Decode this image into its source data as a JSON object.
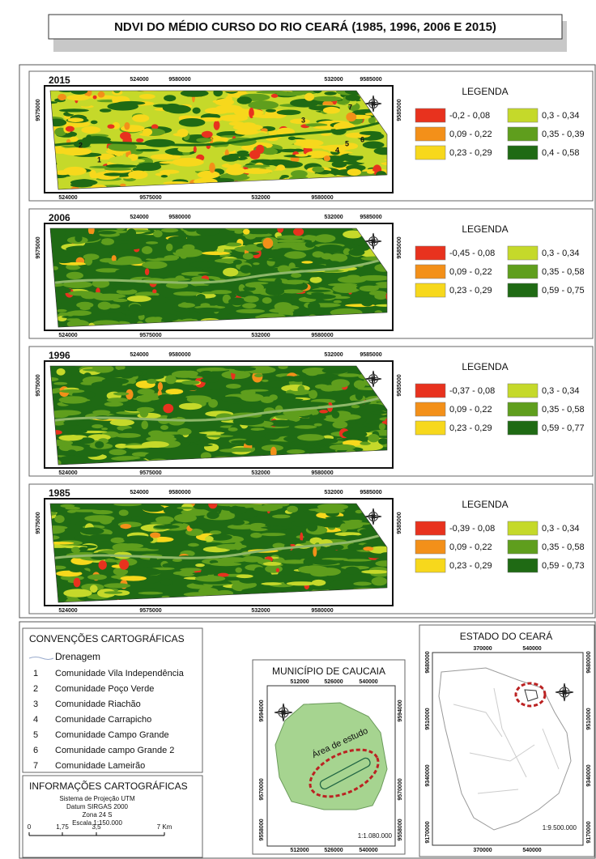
{
  "title": "NDVI DO MÉDIO CURSO DO RIO CEARÁ (1985, 1996, 2006 E 2015)",
  "panels": [
    {
      "year": "2015",
      "legend_title": "LEGENDA",
      "classes": [
        {
          "label": "-0,2 - 0,08",
          "color": "#e8321e"
        },
        {
          "label": "0,09 - 0,22",
          "color": "#f39019"
        },
        {
          "label": "0,23 - 0,29",
          "color": "#f7d81c"
        },
        {
          "label": "0,3 - 0,34",
          "color": "#c5d92a"
        },
        {
          "label": "0,35 - 0,39",
          "color": "#5f9e1d"
        },
        {
          "label": "0,4 - 0,58",
          "color": "#1f6a14"
        }
      ],
      "top_labels": [
        "524000",
        "9580000",
        "532000",
        "9585000"
      ],
      "bottom_labels": [
        "524000",
        "9575000",
        "532000",
        "9580000"
      ],
      "left_label": "9575000",
      "right_label": "9585000",
      "map_numbers": [
        "1",
        "2",
        "3",
        "4",
        "5",
        "6",
        "7"
      ]
    },
    {
      "year": "2006",
      "legend_title": "LEGENDA",
      "classes": [
        {
          "label": "-0,45 - 0,08",
          "color": "#e8321e"
        },
        {
          "label": "0,09 - 0,22",
          "color": "#f39019"
        },
        {
          "label": "0,23 - 0,29",
          "color": "#f7d81c"
        },
        {
          "label": "0,3 - 0,34",
          "color": "#c5d92a"
        },
        {
          "label": "0,35 - 0,58",
          "color": "#5f9e1d"
        },
        {
          "label": "0,59 - 0,75",
          "color": "#1f6a14"
        }
      ],
      "top_labels": [
        "524000",
        "9580000",
        "532000",
        "9585000"
      ],
      "bottom_labels": [
        "524000",
        "9575000",
        "532000",
        "9580000"
      ],
      "left_label": "9575000",
      "right_label": "9585000"
    },
    {
      "year": "1996",
      "legend_title": "LEGENDA",
      "classes": [
        {
          "label": "-0,37 - 0,08",
          "color": "#e8321e"
        },
        {
          "label": "0,09 - 0,22",
          "color": "#f39019"
        },
        {
          "label": "0,23 - 0,29",
          "color": "#f7d81c"
        },
        {
          "label": "0,3 - 0,34",
          "color": "#c5d92a"
        },
        {
          "label": "0,35 - 0,58",
          "color": "#5f9e1d"
        },
        {
          "label": "0,59 - 0,77",
          "color": "#1f6a14"
        }
      ],
      "top_labels": [
        "524000",
        "9580000",
        "532000",
        "9585000"
      ],
      "bottom_labels": [
        "524000",
        "9575000",
        "532000",
        "9580000"
      ],
      "left_label": "9575000",
      "right_label": "9585000"
    },
    {
      "year": "1985",
      "legend_title": "LEGENDA",
      "classes": [
        {
          "label": "-0,39 - 0,08",
          "color": "#e8321e"
        },
        {
          "label": "0,09 - 0,22",
          "color": "#f39019"
        },
        {
          "label": "0,23 - 0,29",
          "color": "#f7d81c"
        },
        {
          "label": "0,3 - 0,34",
          "color": "#c5d92a"
        },
        {
          "label": "0,35 - 0,58",
          "color": "#5f9e1d"
        },
        {
          "label": "0,59 - 0,73",
          "color": "#1f6a14"
        }
      ],
      "top_labels": [
        "524000",
        "9580000",
        "532000",
        "9585000"
      ],
      "bottom_labels": [
        "524000",
        "9575000",
        "532000",
        "9580000"
      ],
      "left_label": "9575000",
      "right_label": "9585000"
    }
  ],
  "conventions": {
    "title": "CONVENÇÕES CARTOGRÁFICAS",
    "drainage": "Drenagem",
    "items": [
      {
        "number": "1",
        "name": "Comunidade Vila Independência"
      },
      {
        "number": "2",
        "name": "Comunidade Poço Verde"
      },
      {
        "number": "3",
        "name": "Comunidade Riachão"
      },
      {
        "number": "4",
        "name": "Comunidade Carrapicho"
      },
      {
        "number": "5",
        "name": "Comunidade Campo Grande"
      },
      {
        "number": "6",
        "name": "Comunidade campo Grande 2"
      },
      {
        "number": "7",
        "name": "Comunidade Lameirão"
      }
    ]
  },
  "info": {
    "title": "INFORMAÇÕES CARTOGRÁFICAS",
    "lines": [
      "Sistema de Projeção UTM",
      "Datum SIRGAS 2000",
      "Zona 24 S",
      "Escala 1:150.000"
    ],
    "scale_labels": [
      "0",
      "1,75",
      "3,5",
      "7 Km"
    ]
  },
  "municipality": {
    "title": "MUNICÍPIO DE CAUCAIA",
    "top_labels": [
      "512000",
      "526000",
      "540000"
    ],
    "bottom_labels": [
      "512000",
      "526000",
      "540000"
    ],
    "left_labels": [
      "9594000",
      "9570000",
      "9558000"
    ],
    "right_labels": [
      "9594000",
      "9570000",
      "9558000"
    ],
    "study_area": "Área de estudo",
    "scale": "1:1.080.000"
  },
  "state": {
    "title": "ESTADO DO CEARÁ",
    "top_labels": [
      "370000",
      "540000"
    ],
    "bottom_labels": [
      "370000",
      "540000"
    ],
    "left_labels": [
      "9680000",
      "9510000",
      "9340000",
      "9170000"
    ],
    "right_labels": [
      "9680000",
      "9510000",
      "9340000",
      "9170000"
    ],
    "scale": "1:9.500.000"
  }
}
